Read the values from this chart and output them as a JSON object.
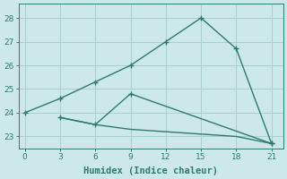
{
  "xlabel": "Humidex (Indice chaleur)",
  "bg_color": "#cce8e8",
  "grid_color": "#aacece",
  "line_color": "#2e7b6e",
  "line1_x": [
    0,
    3,
    6,
    9,
    12,
    15,
    18,
    21
  ],
  "line1_y": [
    24.0,
    24.6,
    25.3,
    26.0,
    27.0,
    28.0,
    26.7,
    22.7
  ],
  "line2_x": [
    3,
    6,
    9,
    21
  ],
  "line2_y": [
    23.8,
    23.5,
    24.8,
    22.7
  ],
  "line3_x": [
    3,
    6,
    9,
    12,
    15,
    18,
    21
  ],
  "line3_y": [
    23.8,
    23.5,
    23.3,
    23.2,
    23.1,
    23.0,
    22.7
  ],
  "xlim": [
    -0.5,
    22
  ],
  "ylim": [
    22.5,
    28.6
  ],
  "xticks": [
    0,
    3,
    6,
    9,
    12,
    15,
    18,
    21
  ],
  "yticks": [
    23,
    24,
    25,
    26,
    27,
    28
  ],
  "tick_fontsize": 6.5,
  "xlabel_fontsize": 7.5
}
